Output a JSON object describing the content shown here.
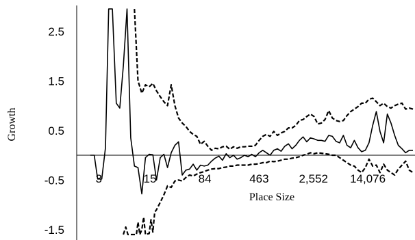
{
  "chart_data": {
    "type": "line",
    "title": "",
    "xlabel": "Place Size",
    "ylabel": "Growth",
    "x_scale": "log",
    "x_tick_labels": [
      "3",
      "15",
      "84",
      "463",
      "2,552",
      "14,076"
    ],
    "x_ticks": [
      3,
      15,
      84,
      463,
      2552,
      14076
    ],
    "y_tick_labels": [
      "2.5",
      "1.5",
      "0.5",
      "-0.5",
      "-1.5"
    ],
    "y_ticks": [
      2.5,
      1.5,
      0.5,
      -0.5,
      -1.5
    ],
    "ylim": [
      -1.6,
      2.95
    ],
    "xlim": [
      1.5,
      62000
    ],
    "grid": false,
    "legend": "none",
    "series": [
      {
        "style": "solid",
        "points": [
          [
            2.3,
            0.0
          ],
          [
            2.6,
            0.0
          ],
          [
            2.9,
            -0.48
          ],
          [
            3.3,
            -0.48
          ],
          [
            3.7,
            0.15
          ],
          [
            4.1,
            2.95
          ],
          [
            4.6,
            2.95
          ],
          [
            5.2,
            1.05
          ],
          [
            5.8,
            0.95
          ],
          [
            6.5,
            1.8
          ],
          [
            7.3,
            2.95
          ],
          [
            8.2,
            0.35
          ],
          [
            9.2,
            -0.22
          ],
          [
            10.3,
            -0.25
          ],
          [
            11.6,
            -0.78
          ],
          [
            13.0,
            -0.05
          ],
          [
            14.6,
            0.02
          ],
          [
            16.4,
            0.01
          ],
          [
            18.4,
            -0.5
          ],
          [
            20.7,
            -0.05
          ],
          [
            23.2,
            0.02
          ],
          [
            26.0,
            -0.25
          ],
          [
            29.2,
            0.05
          ],
          [
            32.8,
            0.2
          ],
          [
            36.8,
            0.27
          ],
          [
            41.3,
            -0.4
          ],
          [
            46.3,
            -0.3
          ],
          [
            52.0,
            -0.28
          ],
          [
            58.3,
            -0.18
          ],
          [
            65.4,
            -0.3
          ],
          [
            73.4,
            -0.2
          ],
          [
            82.4,
            -0.22
          ],
          [
            92.4,
            -0.2
          ],
          [
            103.7,
            -0.12
          ],
          [
            116.3,
            -0.06
          ],
          [
            130.5,
            -0.02
          ],
          [
            146.4,
            -0.1
          ],
          [
            164.3,
            0.03
          ],
          [
            184.3,
            -0.05
          ],
          [
            206.8,
            0.0
          ],
          [
            232.0,
            -0.08
          ],
          [
            260.3,
            -0.05
          ],
          [
            292.1,
            0.0
          ],
          [
            327.7,
            -0.03
          ],
          [
            367.7,
            0.02
          ],
          [
            412.5,
            -0.03
          ],
          [
            462.8,
            0.05
          ],
          [
            519.3,
            0.1
          ],
          [
            582.6,
            0.05
          ],
          [
            653.7,
            0.0
          ],
          [
            733.4,
            0.1
          ],
          [
            822.8,
            0.13
          ],
          [
            923.1,
            0.08
          ],
          [
            1035.7,
            0.18
          ],
          [
            1162.0,
            0.23
          ],
          [
            1303.7,
            0.13
          ],
          [
            1462.7,
            0.2
          ],
          [
            1641.1,
            0.3
          ],
          [
            1841.2,
            0.37
          ],
          [
            2065.7,
            0.27
          ],
          [
            2317.6,
            0.35
          ],
          [
            2600.3,
            0.33
          ],
          [
            2917.4,
            0.3
          ],
          [
            3273.2,
            0.3
          ],
          [
            3672.4,
            0.28
          ],
          [
            4120.2,
            0.4
          ],
          [
            4622.7,
            0.38
          ],
          [
            5186.4,
            0.28
          ],
          [
            5818.9,
            0.25
          ],
          [
            6528.5,
            0.4
          ],
          [
            7324.7,
            0.2
          ],
          [
            8217.9,
            0.15
          ],
          [
            9220.1,
            0.3
          ],
          [
            10344.5,
            0.15
          ],
          [
            11606.0,
            0.07
          ],
          [
            13021.4,
            0.1
          ],
          [
            14609.4,
            0.25
          ],
          [
            16391.0,
            0.6
          ],
          [
            18389.9,
            0.88
          ],
          [
            20632.5,
            0.48
          ],
          [
            23148.7,
            0.25
          ],
          [
            25971.6,
            0.83
          ],
          [
            29138.8,
            0.65
          ],
          [
            32692.2,
            0.4
          ],
          [
            36679.1,
            0.2
          ],
          [
            41152.0,
            0.13
          ],
          [
            46170.5,
            0.05
          ],
          [
            51801.0,
            0.1
          ],
          [
            58118.1,
            0.1
          ]
        ]
      },
      {
        "style": "dashed",
        "points": [
          [
            9.2,
            2.95
          ],
          [
            10.3,
            1.5
          ],
          [
            11.6,
            1.25
          ],
          [
            13.0,
            1.42
          ],
          [
            14.6,
            1.38
          ],
          [
            16.4,
            1.45
          ],
          [
            18.4,
            1.3
          ],
          [
            20.7,
            1.18
          ],
          [
            23.2,
            1.08
          ],
          [
            26.0,
            1.0
          ],
          [
            29.2,
            1.42
          ],
          [
            32.8,
            1.0
          ],
          [
            36.8,
            0.75
          ],
          [
            41.3,
            0.65
          ],
          [
            46.3,
            0.58
          ],
          [
            52.0,
            0.48
          ],
          [
            58.3,
            0.42
          ],
          [
            65.4,
            0.38
          ],
          [
            73.4,
            0.22
          ],
          [
            82.4,
            0.28
          ],
          [
            92.4,
            0.18
          ],
          [
            103.7,
            0.1
          ],
          [
            116.3,
            0.14
          ],
          [
            130.5,
            0.13
          ],
          [
            146.4,
            0.17
          ],
          [
            164.3,
            0.18
          ],
          [
            184.3,
            0.12
          ],
          [
            206.8,
            0.17
          ],
          [
            232.0,
            0.14
          ],
          [
            260.3,
            0.17
          ],
          [
            292.1,
            0.17
          ],
          [
            327.7,
            0.18
          ],
          [
            367.7,
            0.18
          ],
          [
            412.5,
            0.2
          ],
          [
            462.8,
            0.3
          ],
          [
            519.3,
            0.38
          ],
          [
            582.6,
            0.42
          ],
          [
            653.7,
            0.38
          ],
          [
            733.4,
            0.48
          ],
          [
            822.8,
            0.4
          ],
          [
            923.1,
            0.45
          ],
          [
            1035.7,
            0.48
          ],
          [
            1162.0,
            0.55
          ],
          [
            1303.7,
            0.55
          ],
          [
            1462.7,
            0.6
          ],
          [
            1641.1,
            0.7
          ],
          [
            1841.2,
            0.72
          ],
          [
            2065.7,
            0.78
          ],
          [
            2317.6,
            0.83
          ],
          [
            2600.3,
            0.78
          ],
          [
            2917.4,
            0.63
          ],
          [
            3273.2,
            0.65
          ],
          [
            3672.4,
            0.72
          ],
          [
            4120.2,
            0.9
          ],
          [
            4622.7,
            0.75
          ],
          [
            5186.4,
            0.7
          ],
          [
            5818.9,
            0.68
          ],
          [
            6528.5,
            0.7
          ],
          [
            7324.7,
            0.8
          ],
          [
            8217.9,
            0.88
          ],
          [
            9220.1,
            0.93
          ],
          [
            10344.5,
            0.98
          ],
          [
            11606.0,
            1.05
          ],
          [
            13021.4,
            1.05
          ],
          [
            14609.4,
            1.13
          ],
          [
            16391.0,
            1.15
          ],
          [
            18389.9,
            1.08
          ],
          [
            20632.5,
            1.0
          ],
          [
            23148.7,
            1.05
          ],
          [
            25971.6,
            0.98
          ],
          [
            29138.8,
            0.95
          ],
          [
            32692.2,
            1.0
          ],
          [
            36679.1,
            1.03
          ],
          [
            41152.0,
            1.05
          ],
          [
            46170.5,
            0.93
          ],
          [
            51801.0,
            0.95
          ],
          [
            58118.1,
            0.93
          ]
        ]
      },
      {
        "style": "dashed",
        "points": [
          [
            6.5,
            -1.6
          ],
          [
            7.0,
            -1.45
          ],
          [
            7.5,
            -1.6
          ],
          [
            9.8,
            -1.6
          ],
          [
            10.3,
            -1.35
          ],
          [
            10.9,
            -1.6
          ],
          [
            11.6,
            -1.5
          ],
          [
            12.3,
            -1.25
          ],
          [
            13.0,
            -1.6
          ],
          [
            14.6,
            -1.58
          ],
          [
            15.5,
            -1.3
          ],
          [
            16.4,
            -1.55
          ],
          [
            17.4,
            -1.15
          ],
          [
            18.4,
            -1.1
          ],
          [
            20.7,
            -0.95
          ],
          [
            23.2,
            -0.8
          ],
          [
            26.0,
            -0.62
          ],
          [
            29.2,
            -0.65
          ],
          [
            32.8,
            -0.52
          ],
          [
            36.8,
            -0.5
          ],
          [
            41.3,
            -0.52
          ],
          [
            46.3,
            -0.45
          ],
          [
            52.0,
            -0.4
          ],
          [
            58.3,
            -0.42
          ],
          [
            65.4,
            -0.38
          ],
          [
            73.4,
            -0.35
          ],
          [
            82.4,
            -0.33
          ],
          [
            92.4,
            -0.3
          ],
          [
            103.7,
            -0.28
          ],
          [
            116.3,
            -0.27
          ],
          [
            130.5,
            -0.27
          ],
          [
            146.4,
            -0.25
          ],
          [
            164.3,
            -0.24
          ],
          [
            184.3,
            -0.22
          ],
          [
            206.8,
            -0.22
          ],
          [
            232.0,
            -0.2
          ],
          [
            260.3,
            -0.2
          ],
          [
            292.1,
            -0.2
          ],
          [
            327.7,
            -0.2
          ],
          [
            367.7,
            -0.18
          ],
          [
            412.5,
            -0.18
          ],
          [
            462.8,
            -0.17
          ],
          [
            519.3,
            -0.15
          ],
          [
            582.6,
            -0.15
          ],
          [
            653.7,
            -0.12
          ],
          [
            733.4,
            -0.13
          ],
          [
            822.8,
            -0.12
          ],
          [
            923.1,
            -0.1
          ],
          [
            1035.7,
            -0.08
          ],
          [
            1162.0,
            -0.08
          ],
          [
            1303.7,
            -0.06
          ],
          [
            1462.7,
            -0.05
          ],
          [
            1641.1,
            -0.03
          ],
          [
            1841.2,
            0.0
          ],
          [
            2065.7,
            0.02
          ],
          [
            2317.6,
            0.05
          ],
          [
            2600.3,
            0.03
          ],
          [
            2917.4,
            0.05
          ],
          [
            3273.2,
            0.04
          ],
          [
            3672.4,
            0.03
          ],
          [
            4120.2,
            0.02
          ],
          [
            4622.7,
            0.0
          ],
          [
            5186.4,
            0.0
          ],
          [
            5818.9,
            -0.05
          ],
          [
            6528.5,
            -0.1
          ],
          [
            7324.7,
            -0.15
          ],
          [
            8217.9,
            -0.2
          ],
          [
            9220.1,
            -0.22
          ],
          [
            10344.5,
            -0.3
          ],
          [
            11606.0,
            -0.35
          ],
          [
            13021.4,
            -0.25
          ],
          [
            14609.4,
            -0.08
          ],
          [
            16391.0,
            -0.22
          ],
          [
            18389.9,
            -0.2
          ],
          [
            20632.5,
            -0.35
          ],
          [
            23148.7,
            -0.18
          ],
          [
            25971.6,
            -0.3
          ],
          [
            29138.8,
            -0.35
          ],
          [
            32692.2,
            -0.4
          ],
          [
            36679.1,
            -0.28
          ],
          [
            41152.0,
            -0.2
          ],
          [
            46170.5,
            -0.12
          ],
          [
            51801.0,
            -0.3
          ],
          [
            58118.1,
            -0.35
          ]
        ]
      }
    ]
  }
}
